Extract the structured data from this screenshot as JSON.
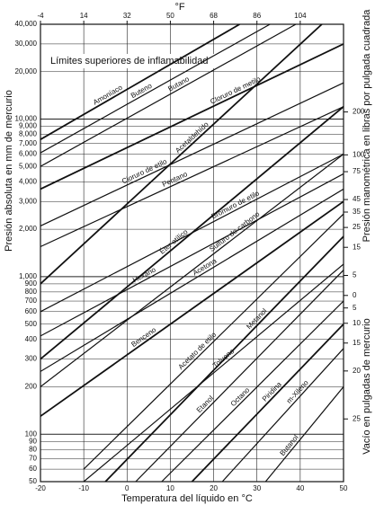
{
  "chart_data": {
    "type": "line",
    "title": "Límites superiores de inflamabilidad",
    "xlabel": "Temperatura del líquido en °C",
    "ylabel": "Presión absoluta en mm de mercurio",
    "x2label": "°F",
    "y2label": "Presión manométrica en libras por pulgada cuadrada",
    "vacuum_label": "Vacío en pulgadas de mercurio",
    "xlim": [
      -20,
      50
    ],
    "xticks": [
      -20,
      -10,
      0,
      10,
      20,
      30,
      40,
      50
    ],
    "x2ticks": [
      -4,
      14,
      32,
      50,
      68,
      86,
      104
    ],
    "ylim": [
      50,
      40000
    ],
    "log_y": true,
    "yticks": [
      {
        "value": 40000,
        "label": "40,000"
      },
      {
        "value": 30000,
        "label": "30,000"
      },
      {
        "value": 20000,
        "label": "20,000"
      },
      {
        "value": 10000,
        "label": "10,000"
      },
      {
        "value": 9000,
        "label": "9,000"
      },
      {
        "value": 8000,
        "label": "8,000"
      },
      {
        "value": 7000,
        "label": "7,000"
      },
      {
        "value": 6000,
        "label": "6,000"
      },
      {
        "value": 5000,
        "label": "5,000"
      },
      {
        "value": 4000,
        "label": "4,000"
      },
      {
        "value": 3000,
        "label": "3,000"
      },
      {
        "value": 2000,
        "label": "2,000"
      },
      {
        "value": 1000,
        "label": "1,000"
      },
      900,
      800,
      700,
      600,
      500,
      400,
      300,
      200,
      100,
      90,
      80,
      70,
      60,
      50
    ],
    "y2ticks": [
      200,
      100,
      75,
      45,
      35,
      25,
      15,
      5,
      0
    ],
    "vacuum_ticks": [
      5,
      10,
      15,
      20,
      25
    ],
    "grid": true,
    "series": [
      {
        "name": "Amoníaco",
        "color": "#111",
        "x": [
          -20,
          26
        ],
        "values": [
          7430,
          40000
        ]
      },
      {
        "name": "Buteno",
        "color": "#111",
        "x": [
          -20,
          33
        ],
        "values": [
          6110,
          40000
        ]
      },
      {
        "name": "Butano",
        "color": "#111",
        "x": [
          -20,
          39
        ],
        "values": [
          5010,
          40000
        ]
      },
      {
        "name": "Cloruro de metilo",
        "color": "#111",
        "x": [
          -20,
          50
        ],
        "values": [
          3600,
          30000
        ]
      },
      {
        "name": "Cloruro de etilo",
        "color": "#111",
        "x": [
          -20,
          50
        ],
        "values": [
          2100,
          17000
        ]
      },
      {
        "name": "Pentano",
        "color": "#111",
        "x": [
          -20,
          50
        ],
        "values": [
          1550,
          12000
        ]
      },
      {
        "name": "Acetaldehído",
        "color": "#111",
        "x": [
          -20,
          45
        ],
        "values": [
          900,
          40000
        ]
      },
      {
        "name": "Bromuro de etilo",
        "color": "#111",
        "x": [
          -20,
          50
        ],
        "values": [
          600,
          6000
        ]
      },
      {
        "name": "Hexano",
        "color": "#111",
        "x": [
          -20,
          50
        ],
        "values": [
          420,
          4500
        ]
      },
      {
        "name": "Éter etílico",
        "color": "#111",
        "x": [
          -20,
          50
        ],
        "values": [
          300,
          12000
        ]
      },
      {
        "name": "Acetona",
        "color": "#111",
        "x": [
          -20,
          50
        ],
        "values": [
          250,
          3600
        ]
      },
      {
        "name": "Sulfuro de carbono",
        "color": "#111",
        "x": [
          -20,
          50
        ],
        "values": [
          200,
          6000
        ]
      },
      {
        "name": "Benceno",
        "color": "#111",
        "x": [
          -20,
          50
        ],
        "values": [
          130,
          3000
        ]
      },
      {
        "name": "Acetato de etilo",
        "color": "#111",
        "x": [
          -10,
          50
        ],
        "values": [
          60,
          2500
        ]
      },
      {
        "name": "Tolueno",
        "color": "#111",
        "x": [
          -10,
          50
        ],
        "values": [
          50,
          1200
        ]
      },
      {
        "name": "Metanol",
        "color": "#111",
        "x": [
          -5,
          50
        ],
        "values": [
          50,
          1800
        ]
      },
      {
        "name": "Etanol",
        "color": "#111",
        "x": [
          2,
          50
        ],
        "values": [
          50,
          1100
        ]
      },
      {
        "name": "Octano",
        "color": "#111",
        "x": [
          8,
          50
        ],
        "values": [
          50,
          700
        ]
      },
      {
        "name": "Piridina",
        "color": "#111",
        "x": [
          15,
          50
        ],
        "values": [
          50,
          500
        ]
      },
      {
        "name": "m-Xileno",
        "color": "#111",
        "x": [
          22,
          50
        ],
        "values": [
          50,
          350
        ]
      },
      {
        "name": "Butanol",
        "color": "#111",
        "x": [
          32,
          50
        ],
        "values": [
          50,
          200
        ]
      }
    ]
  }
}
